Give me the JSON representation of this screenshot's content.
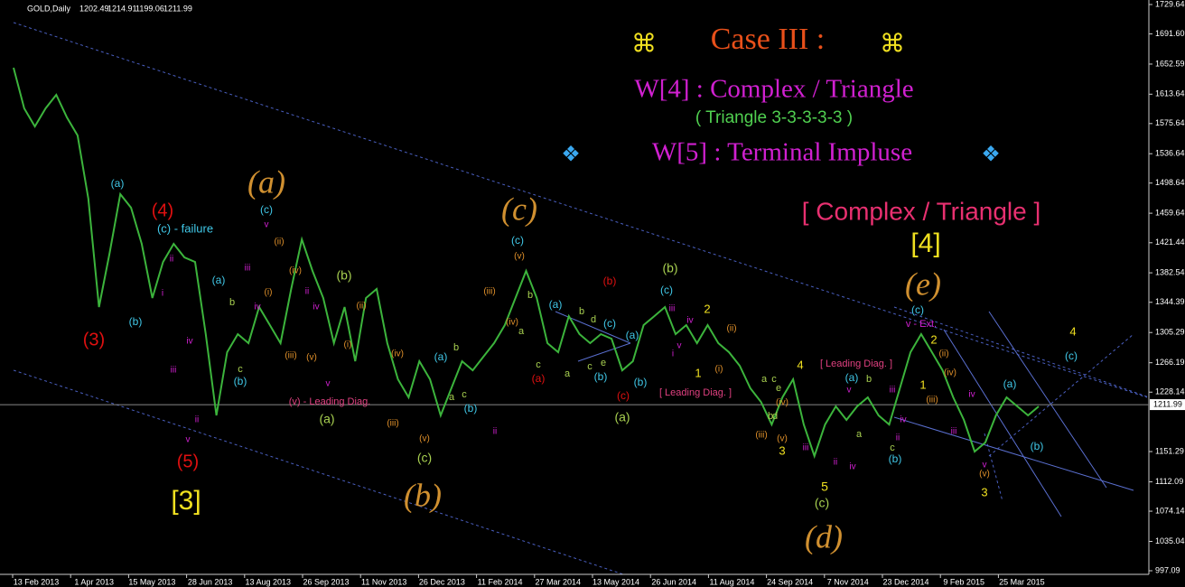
{
  "chart_data": {
    "type": "line",
    "symbol": "GOLD,Daily",
    "ohlc": [
      1202.49,
      1214.91,
      1199.06,
      1211.99
    ],
    "title_icon": "⌘",
    "title": "Case III :",
    "subtitle_1": "W[4] : Complex / Triangle",
    "subtitle_2": "( Triangle 3-3-3-3-3 )",
    "subtitle_icon": "❖",
    "subtitle_3": "W[5] : Terminal Impluse",
    "heading": "[ Complex / Triangle ]",
    "heading_wave": "[4]",
    "current_price": 1211.99,
    "ylim": [
      981.9,
      1735.5
    ],
    "yticks": [
      1729.64,
      {
        "value": 1691.6,
        "label": "1691.60"
      },
      1652.59,
      1613.64,
      1575.64,
      1536.64,
      1498.64,
      1459.64,
      1421.44,
      1382.54,
      1344.39,
      1305.29,
      1266.19,
      1228.14,
      1151.29,
      1112.09,
      1074.14,
      1035.04,
      997.09
    ],
    "x_axis_labels": [
      "13 Feb 2013",
      "1 Apr 2013",
      "15 May 2013",
      "28 Jun 2013",
      "13 Aug 2013",
      "26 Sep 2013",
      "11 Nov 2013",
      "26 Dec 2013",
      "11 Feb 2014",
      "27 Mar 2014",
      "13 May 2014",
      "26 Jun 2014",
      "11 Aug 2014",
      "24 Sep 2014",
      "7 Nov 2014",
      "23 Dec 2014",
      "9 Feb 2015",
      "25 Mar 2015"
    ],
    "series": [
      {
        "name": "GOLD",
        "color": "#3cb43c",
        "values": [
          1647.9,
          1595.3,
          1571.9,
          1595.3,
          1612.8,
          1583.6,
          1560.2,
          1478.4,
          1338.2,
          1408.3,
          1484.3,
          1466.8,
          1420.0,
          1349.9,
          1396.6,
          1420.0,
          1402.5,
          1396.6,
          1303.2,
          1198.0,
          1279.8,
          1303.2,
          1291.5,
          1338.2,
          1314.9,
          1291.5,
          1361.6,
          1425.8,
          1385.0,
          1349.9,
          1291.5,
          1338.2,
          1268.1,
          1349.9,
          1361.6,
          1291.5,
          1244.8,
          1221.4,
          1268.1,
          1244.8,
          1198.0,
          1233.1,
          1268.1,
          1256.4,
          1274.0,
          1291.5,
          1314.9,
          1349.9,
          1385.0,
          1349.9,
          1291.5,
          1279.8,
          1326.5,
          1303.2,
          1291.5,
          1303.2,
          1297.3,
          1256.4,
          1268.1,
          1314.9,
          1326.5,
          1338.2,
          1303.2,
          1314.9,
          1291.5,
          1314.9,
          1291.5,
          1279.8,
          1262.3,
          1233.1,
          1215.5,
          1186.3,
          1221.4,
          1244.8,
          1186.3,
          1145.5,
          1186.3,
          1209.7,
          1192.2,
          1209.7,
          1221.4,
          1198.0,
          1186.3,
          1233.1,
          1279.8,
          1303.2,
          1279.8,
          1256.4,
          1221.4,
          1192.2,
          1151.3,
          1163.0,
          1198.0,
          1221.4,
          1209.7,
          1198.0,
          1209.7
        ]
      }
    ],
    "annotations": [
      {
        "text": "(3)",
        "color": "#e01010"
      },
      {
        "text": "(4)",
        "color": "#e01010"
      },
      {
        "text": "(5)",
        "color": "#e01010"
      },
      {
        "text": "[3]",
        "color": "#f0e020"
      },
      {
        "text": "(a)",
        "color": "#40c8e8"
      },
      {
        "text": "(b)",
        "color": "#40c8e8"
      },
      {
        "text": "(c) - failure",
        "color": "#40c8e8"
      },
      {
        "text": "(a)",
        "color": "#d09030"
      },
      {
        "text": "(c)",
        "color": "#40c8e8"
      },
      {
        "text": "(c)",
        "color": "#d09030"
      },
      {
        "text": "(c)",
        "color": "#40c8e8"
      },
      {
        "text": "(b)",
        "color": "#d09030"
      },
      {
        "text": "(c)",
        "color": "#a8d050"
      },
      {
        "text": "(a)",
        "color": "#a8d050"
      },
      {
        "text": "(b)",
        "color": "#a8d050"
      },
      {
        "text": "(v) - Leading Diag.",
        "color": "#e04080"
      },
      {
        "text": "(d)",
        "color": "#d09030"
      },
      {
        "text": "(c)",
        "color": "#a8d050"
      },
      {
        "text": "5",
        "color": "#f0e020"
      },
      {
        "text": "(e)",
        "color": "#d09030"
      },
      {
        "text": "(c)",
        "color": "#40c8e8"
      },
      {
        "text": "v - Ext.",
        "color": "#d020d0"
      },
      {
        "text": "[ Leading Diag. ]",
        "color": "#e04080"
      },
      {
        "text": "[ Leading Diag. ]",
        "color": "#e04080"
      },
      {
        "text": "(b)",
        "color": "#e01010"
      },
      {
        "text": "(a)",
        "color": "#40c8e8"
      },
      {
        "text": "(c)",
        "color": "#40c8e8"
      },
      {
        "text": "(b)",
        "color": "#40c8e8"
      },
      {
        "text": "(c)",
        "color": "#e01010"
      },
      {
        "text": "(a)",
        "color": "#e01010"
      },
      {
        "text": "(a)",
        "color": "#a8d050"
      },
      {
        "text": "(b)",
        "color": "#a8d050"
      },
      {
        "text": "(c)",
        "color": "#40c8e8"
      },
      {
        "text": "(b)",
        "color": "#40c8e8"
      },
      {
        "text": "(a)",
        "color": "#40c8e8"
      },
      {
        "text": "2",
        "color": "#f0e020"
      },
      {
        "text": "1",
        "color": "#f0e020"
      },
      {
        "text": "4",
        "color": "#f0e020"
      },
      {
        "text": "3",
        "color": "#f0e020"
      },
      {
        "text": "2",
        "color": "#f0e020"
      },
      {
        "text": "1",
        "color": "#f0e020"
      },
      {
        "text": "3",
        "color": "#f0e020"
      },
      {
        "text": "4",
        "color": "#f0e020"
      },
      {
        "text": "(c)",
        "color": "#40c8e8"
      },
      {
        "text": "(a)",
        "color": "#40c8e8"
      },
      {
        "text": "(b)",
        "color": "#40c8e8"
      },
      {
        "text": "(a)",
        "color": "#40c8e8"
      },
      {
        "text": "(b)",
        "color": "#40c8e8"
      },
      {
        "text": "(a)",
        "color": "#40c8e8"
      },
      {
        "text": "(b)",
        "color": "#40c8e8"
      },
      {
        "text": "(a)",
        "color": "#40c8e8"
      },
      {
        "text": "(b)",
        "color": "#40c8e8"
      },
      {
        "text": "(iii)",
        "color": "#e0902a"
      },
      {
        "text": "(iv)",
        "color": "#e0902a"
      },
      {
        "text": "(v)",
        "color": "#e0902a"
      },
      {
        "text": "(ii)",
        "color": "#e0902a"
      },
      {
        "text": "(iv)",
        "color": "#e0902a"
      },
      {
        "text": "(i)",
        "color": "#e0902a"
      },
      {
        "text": "(iii)",
        "color": "#e0902a"
      },
      {
        "text": "(v)",
        "color": "#e0902a"
      },
      {
        "text": "(ii)",
        "color": "#e0902a"
      },
      {
        "text": "(i)",
        "color": "#e0902a"
      },
      {
        "text": "(iv)",
        "color": "#e0902a"
      },
      {
        "text": "(iii)",
        "color": "#e0902a"
      },
      {
        "text": "(v)",
        "color": "#e0902a"
      },
      {
        "text": "(i)",
        "color": "#e0902a"
      },
      {
        "text": "(ii)",
        "color": "#e0902a"
      },
      {
        "text": "(iii)",
        "color": "#e0902a"
      },
      {
        "text": "(iv)",
        "color": "#e0902a"
      },
      {
        "text": "(v)",
        "color": "#e0902a"
      },
      {
        "text": "(ii)",
        "color": "#e0902a"
      },
      {
        "text": "(iii)",
        "color": "#e0902a"
      },
      {
        "text": "(iv)",
        "color": "#e0902a"
      },
      {
        "text": "(v)",
        "color": "#e0902a"
      },
      {
        "text": "ii",
        "color": "#d020d0"
      },
      {
        "text": "i",
        "color": "#d020d0"
      },
      {
        "text": "iii",
        "color": "#d020d0"
      },
      {
        "text": "iv",
        "color": "#d020d0"
      },
      {
        "text": "v",
        "color": "#d020d0"
      },
      {
        "text": "ii",
        "color": "#d020d0"
      },
      {
        "text": "iii",
        "color": "#d020d0"
      },
      {
        "text": "iv",
        "color": "#d020d0"
      },
      {
        "text": "v",
        "color": "#d020d0"
      },
      {
        "text": "ii",
        "color": "#d020d0"
      },
      {
        "text": "iv",
        "color": "#d020d0"
      },
      {
        "text": "v",
        "color": "#d020d0"
      },
      {
        "text": "iii",
        "color": "#d020d0"
      },
      {
        "text": "iv",
        "color": "#d020d0"
      },
      {
        "text": "v",
        "color": "#d020d0"
      },
      {
        "text": "i",
        "color": "#d020d0"
      },
      {
        "text": "ii",
        "color": "#d020d0"
      },
      {
        "text": "iii",
        "color": "#d020d0"
      },
      {
        "text": "ii",
        "color": "#d020d0"
      },
      {
        "text": "iv",
        "color": "#d020d0"
      },
      {
        "text": "v",
        "color": "#d020d0"
      },
      {
        "text": "iii",
        "color": "#d020d0"
      },
      {
        "text": "iv",
        "color": "#d020d0"
      },
      {
        "text": "ii",
        "color": "#d020d0"
      },
      {
        "text": "v",
        "color": "#d020d0"
      },
      {
        "text": "iv",
        "color": "#d020d0"
      },
      {
        "text": "iii",
        "color": "#d020d0"
      },
      {
        "text": "b",
        "color": "#a8d050"
      },
      {
        "text": "c",
        "color": "#a8d050"
      },
      {
        "text": "a",
        "color": "#a8d050"
      },
      {
        "text": "b",
        "color": "#a8d050"
      },
      {
        "text": "c",
        "color": "#a8d050"
      },
      {
        "text": "a",
        "color": "#a8d050"
      },
      {
        "text": "b",
        "color": "#a8d050"
      },
      {
        "text": "c",
        "color": "#a8d050"
      },
      {
        "text": "a",
        "color": "#a8d050"
      },
      {
        "text": "b",
        "color": "#a8d050"
      },
      {
        "text": "c",
        "color": "#a8d050"
      },
      {
        "text": "d",
        "color": "#a8d050"
      },
      {
        "text": "e",
        "color": "#a8d050"
      },
      {
        "text": "a",
        "color": "#a8d050"
      },
      {
        "text": "b",
        "color": "#a8d050"
      },
      {
        "text": "c",
        "color": "#a8d050"
      },
      {
        "text": "d",
        "color": "#a8d050"
      },
      {
        "text": "e",
        "color": "#a8d050"
      },
      {
        "text": "a",
        "color": "#a8d050"
      },
      {
        "text": "b",
        "color": "#a8d050"
      },
      {
        "text": "c",
        "color": "#a8d050"
      }
    ]
  }
}
